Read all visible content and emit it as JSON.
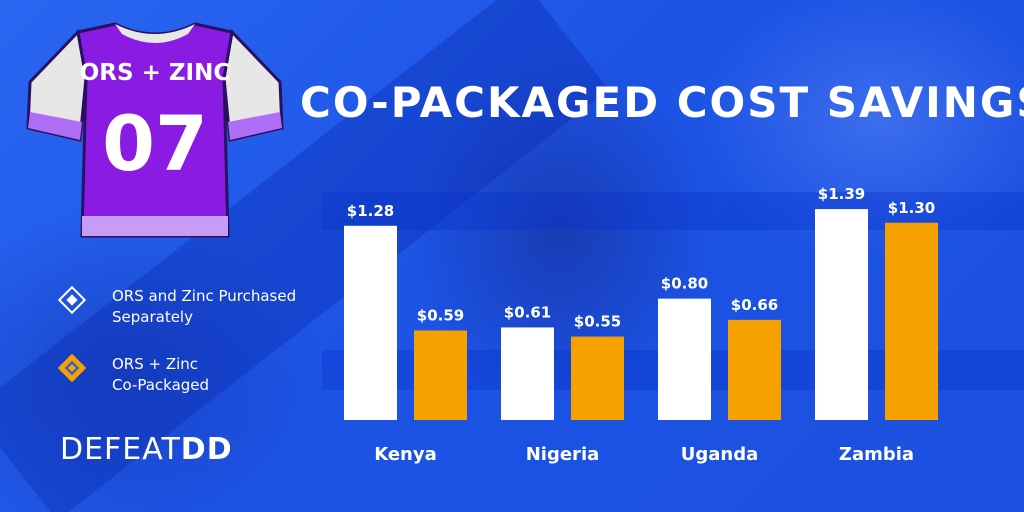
{
  "title": "CO-PACKAGED COST SAVINGS",
  "jersey": {
    "text": "ORS + ZINC",
    "number": "07"
  },
  "legend": [
    {
      "lines": [
        "ORS and Zinc Purchased",
        "Separately"
      ],
      "color": "#ffffff",
      "icon": "diamond-outline-icon"
    },
    {
      "lines": [
        "ORS + Zinc",
        "Co-Packaged"
      ],
      "color": "#f7a100",
      "icon": "diamond-orange-icon"
    }
  ],
  "brand": {
    "part1": "DEFEAT",
    "part2": "DD"
  },
  "colors": {
    "background": "#1f5bea",
    "separate": "#ffffff",
    "copackaged": "#f7a100",
    "jersey": "#8a1be2"
  },
  "chart_data": {
    "type": "bar",
    "categories": [
      "Kenya",
      "Nigeria",
      "Uganda",
      "Zambia"
    ],
    "series": [
      {
        "name": "ORS and Zinc Purchased Separately",
        "values": [
          1.28,
          0.61,
          0.8,
          1.39
        ],
        "labels": [
          "$1.28",
          "$0.61",
          "$0.80",
          "$1.39"
        ]
      },
      {
        "name": "ORS + Zinc Co-Packaged",
        "values": [
          0.59,
          0.55,
          0.66,
          1.3
        ],
        "labels": [
          "$0.59",
          "$0.55",
          "$0.66",
          "$1.30"
        ]
      }
    ],
    "title": "CO-PACKAGED COST SAVINGS",
    "xlabel": "",
    "ylabel": "",
    "ylim": [
      0,
      1.45
    ],
    "grid": false,
    "legend_position": "left"
  }
}
